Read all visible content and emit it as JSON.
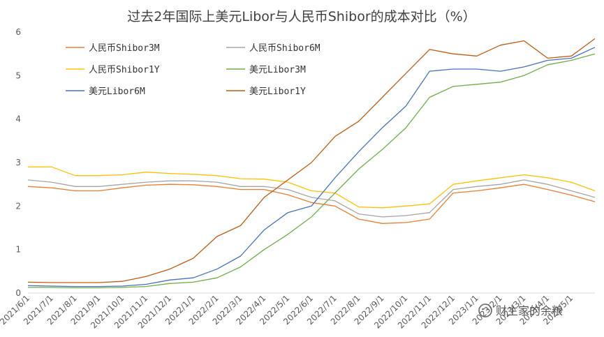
{
  "chart_data": {
    "type": "line",
    "title": "过去2年国际上美元Libor与人民币Shibor的成本对比（%）",
    "xlabel": "",
    "ylabel": "",
    "ylim": [
      0,
      6
    ],
    "y_ticks": [
      "0",
      "1",
      "2",
      "3",
      "4",
      "5",
      "6"
    ],
    "x_ticks": [
      "2021/6/1",
      "2021/7/1",
      "2021/8/1",
      "2021/9/1",
      "2021/10/1",
      "2021/11/1",
      "2021/12/1",
      "2022/1/1",
      "2022/2/1",
      "2022/3/1",
      "2022/4/1",
      "2022/5/1",
      "2022/6/1",
      "2022/7/1",
      "2022/8/1",
      "2022/9/1",
      "2022/10/1",
      "2022/11/1",
      "2022/12/1",
      "2023/1/1",
      "2023/2/1",
      "2023/3/1",
      "2023/4/1",
      "2023/5/1"
    ],
    "x_ticks_shown": [
      "2021/6/1",
      "2021/7/1",
      "2021/8/1",
      "2021/9/1",
      "2021/10/1",
      "2021/11/1",
      "2021/12/1",
      "2022/1/1",
      "2022/2/1",
      "2022/3/1",
      "2022/4/1",
      "2022/5/1",
      "2022/6/1",
      "2022/7/1",
      "2022/8/1",
      "2022/9/1",
      "2022/10/1",
      "2022/11/1",
      "2022/12/1",
      "2023/1/1",
      "2023/2/1",
      "2023/3/1",
      "2023/4/1",
      "2023/5/1"
    ],
    "grid": false,
    "legend_position": "top-left",
    "x": [
      "2021/6/1",
      "2021/7/1",
      "2021/8/1",
      "2021/9/1",
      "2021/10/1",
      "2021/11/1",
      "2021/12/1",
      "2022/1/1",
      "2022/2/1",
      "2022/3/1",
      "2022/4/1",
      "2022/5/1",
      "2022/6/1",
      "2022/7/1",
      "2022/8/1",
      "2022/9/1",
      "2022/10/1",
      "2022/11/1",
      "2022/12/1",
      "2023/1/1",
      "2023/2/1",
      "2023/3/1",
      "2023/4/1",
      "2023/5/1",
      "2023/6/1"
    ],
    "series": [
      {
        "name": "人民币Shibor3M",
        "color": "#ED7D31",
        "values": [
          2.45,
          2.42,
          2.35,
          2.35,
          2.42,
          2.48,
          2.5,
          2.49,
          2.45,
          2.38,
          2.38,
          2.26,
          2.08,
          2.0,
          1.7,
          1.6,
          1.62,
          1.7,
          2.3,
          2.35,
          2.42,
          2.5,
          2.38,
          2.25,
          2.1
        ]
      },
      {
        "name": "人民币Shibor6M",
        "color": "#A5A5A5",
        "values": [
          2.6,
          2.55,
          2.45,
          2.45,
          2.5,
          2.55,
          2.58,
          2.58,
          2.55,
          2.45,
          2.45,
          2.38,
          2.2,
          2.12,
          1.82,
          1.75,
          1.78,
          1.85,
          2.38,
          2.45,
          2.5,
          2.6,
          2.5,
          2.35,
          2.2
        ]
      },
      {
        "name": "人民币Shibor1Y",
        "color": "#FFC000",
        "values": [
          2.9,
          2.9,
          2.7,
          2.7,
          2.72,
          2.78,
          2.75,
          2.73,
          2.7,
          2.63,
          2.62,
          2.55,
          2.35,
          2.3,
          1.98,
          1.96,
          2.0,
          2.05,
          2.5,
          2.58,
          2.65,
          2.72,
          2.65,
          2.55,
          2.35
        ]
      },
      {
        "name": "美元Libor3M",
        "color": "#70AD47",
        "values": [
          0.13,
          0.13,
          0.12,
          0.12,
          0.13,
          0.15,
          0.22,
          0.25,
          0.35,
          0.6,
          1.0,
          1.35,
          1.75,
          2.3,
          2.85,
          3.3,
          3.8,
          4.5,
          4.75,
          4.8,
          4.85,
          5.0,
          5.25,
          5.35,
          5.5
        ]
      },
      {
        "name": "美元Libor6M",
        "color": "#4472C4",
        "values": [
          0.17,
          0.16,
          0.15,
          0.15,
          0.16,
          0.2,
          0.3,
          0.35,
          0.55,
          0.85,
          1.45,
          1.85,
          2.0,
          2.65,
          3.25,
          3.8,
          4.3,
          5.1,
          5.15,
          5.15,
          5.1,
          5.2,
          5.35,
          5.4,
          5.65
        ]
      },
      {
        "name": "美元Libor1Y",
        "color": "#C55A11",
        "values": [
          0.25,
          0.24,
          0.24,
          0.24,
          0.27,
          0.38,
          0.55,
          0.8,
          1.3,
          1.55,
          2.2,
          2.6,
          3.0,
          3.6,
          3.95,
          4.5,
          5.05,
          5.6,
          5.5,
          5.45,
          5.7,
          5.8,
          5.4,
          5.45,
          5.85
        ]
      }
    ]
  },
  "watermark": {
    "text": "财主家的余粮",
    "icon": "wechat-icon"
  }
}
